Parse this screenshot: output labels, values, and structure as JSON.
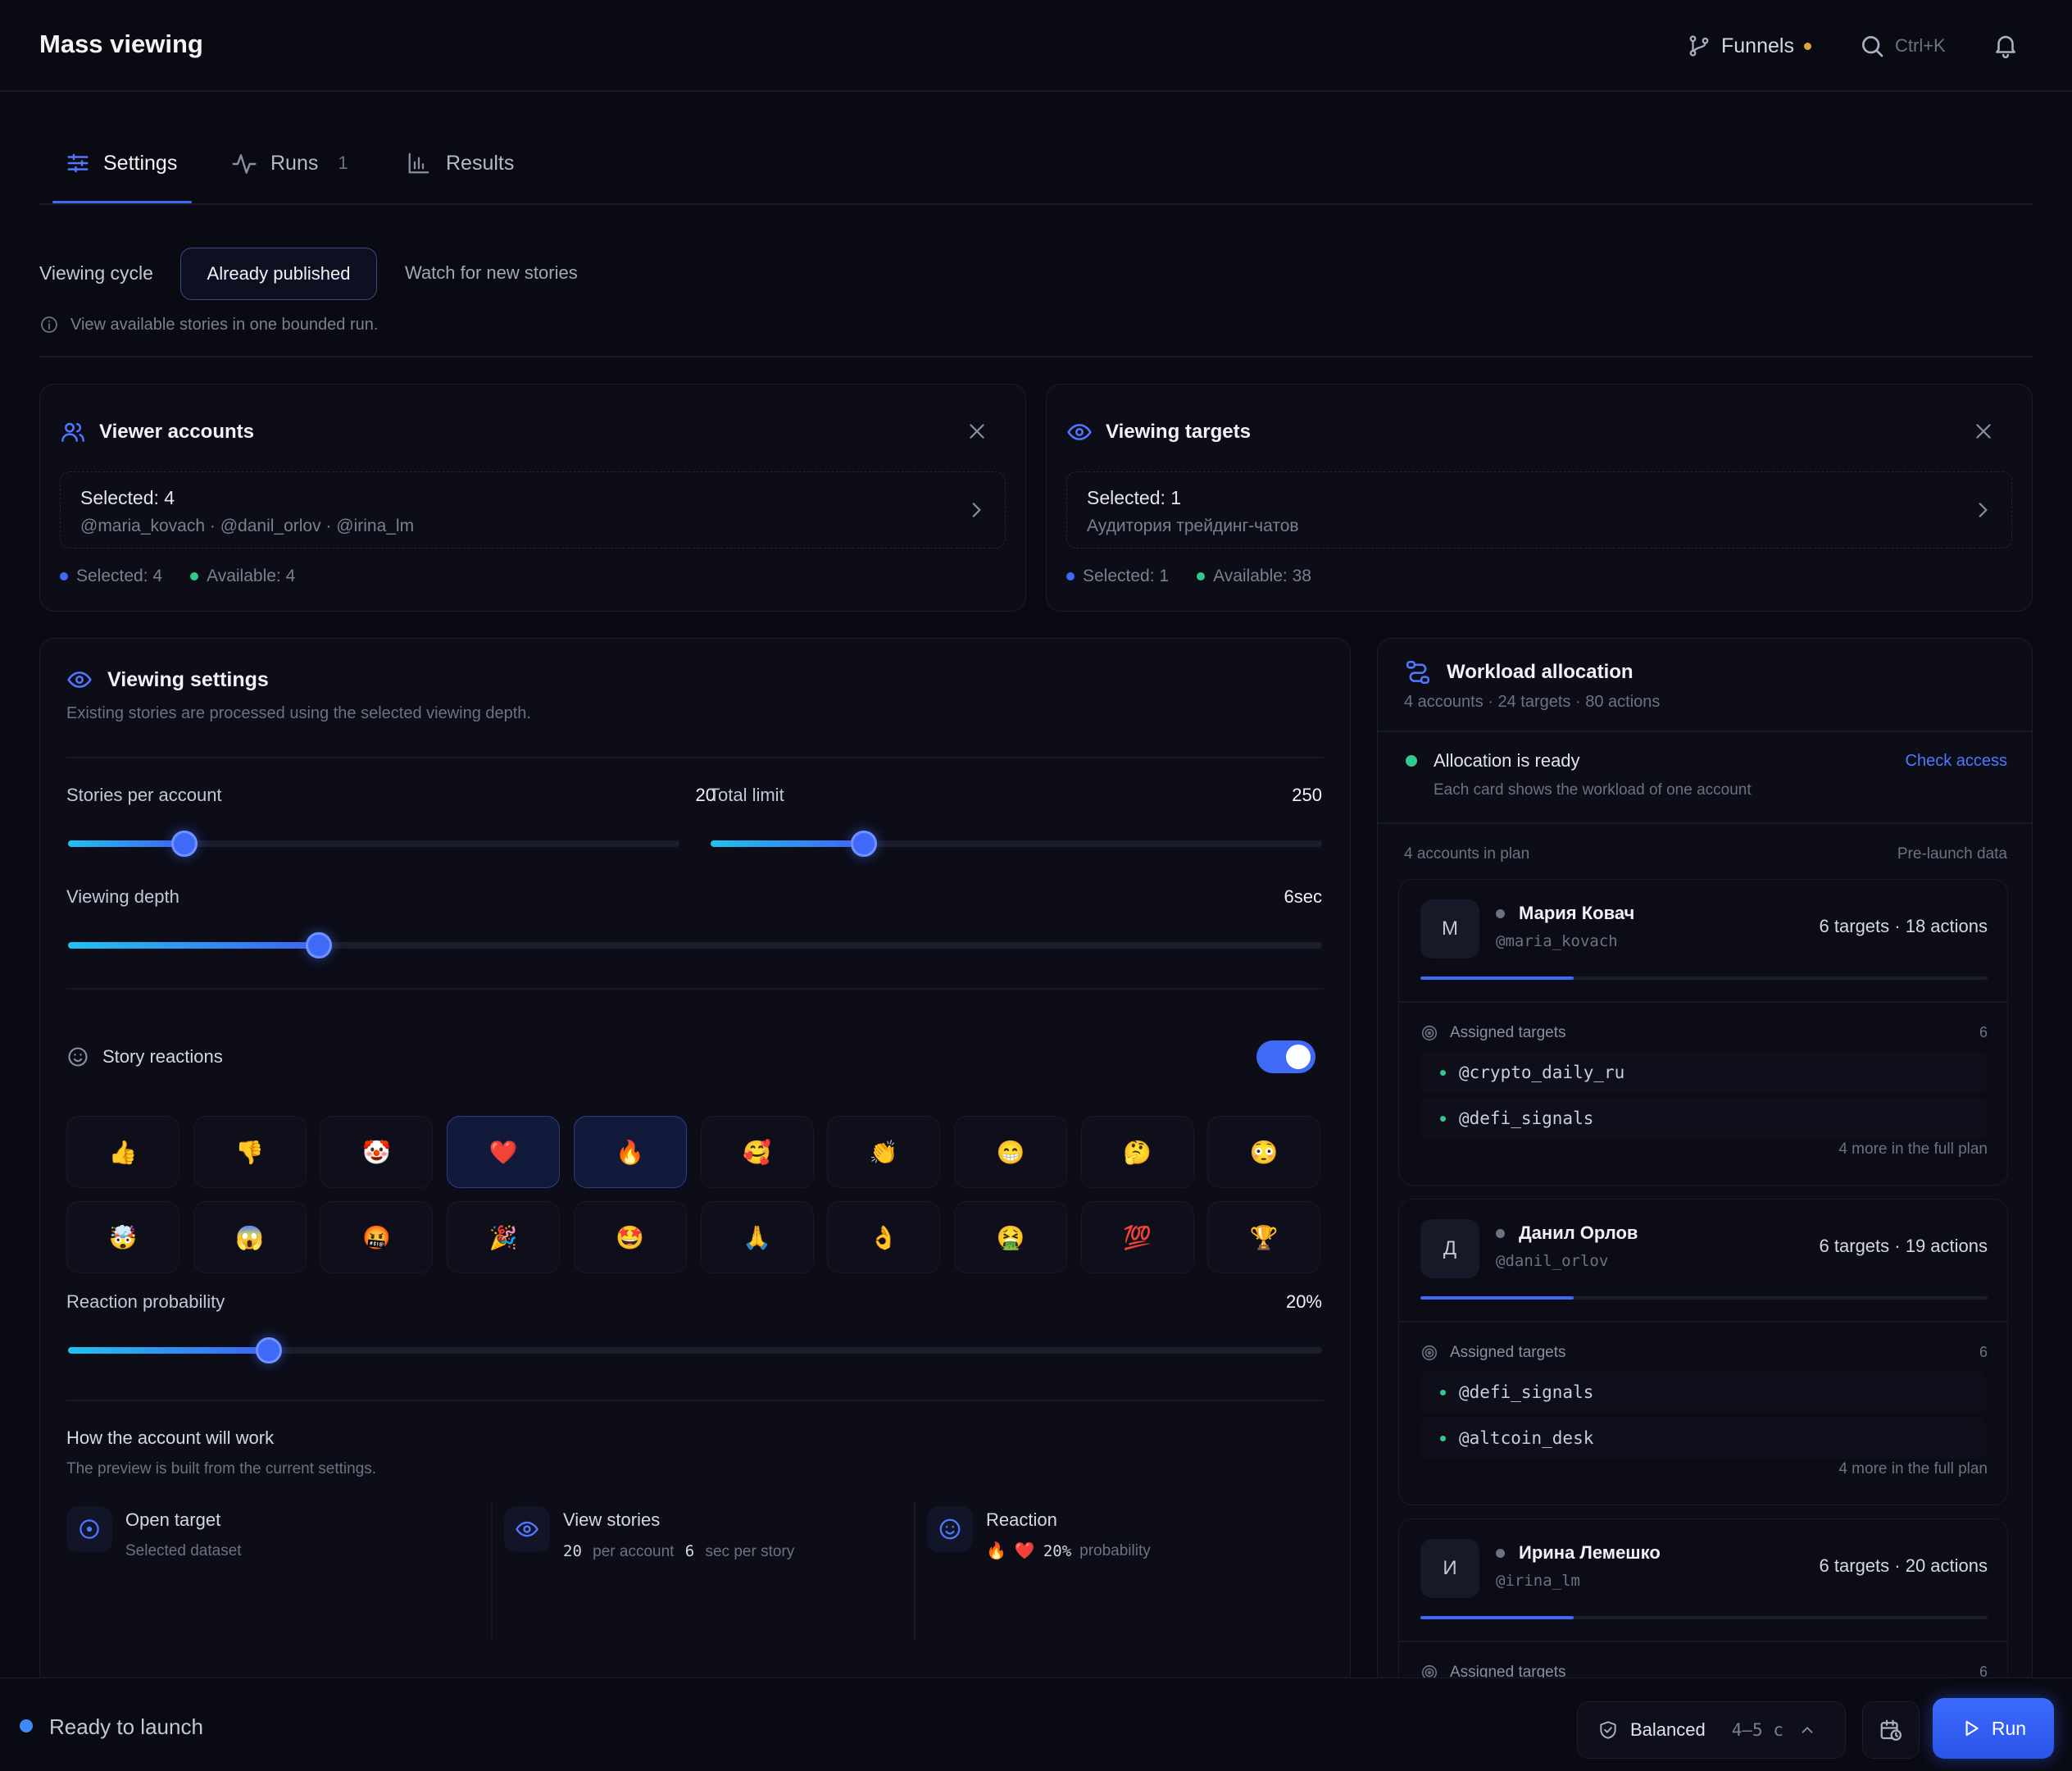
{
  "header": {
    "title": "Mass viewing",
    "funnels_label": "Funnels",
    "search_shortcut": "Ctrl+K"
  },
  "tabs": [
    {
      "label": "Settings",
      "badge": ""
    },
    {
      "label": "Runs",
      "badge": "1"
    },
    {
      "label": "Results",
      "badge": ""
    }
  ],
  "cycle": {
    "label": "Viewing cycle",
    "options": [
      "Already published",
      "Watch for new stories"
    ],
    "selected": "Already published",
    "hint": "View available stories in one bounded run."
  },
  "viewer_accounts": {
    "title": "Viewer accounts",
    "selected_line": "Selected: 4",
    "handles_line": "@maria_kovach · @danil_orlov · @irina_lm",
    "stat_selected": "Selected: 4",
    "stat_available": "Available: 4"
  },
  "viewing_targets": {
    "title": "Viewing targets",
    "selected_line": "Selected: 1",
    "dataset_line": "Аудитория трейдинг-чатов",
    "stat_selected": "Selected: 1",
    "stat_available": "Available: 38"
  },
  "viewing_settings": {
    "title": "Viewing settings",
    "subtitle": "Existing stories are processed using the selected viewing depth.",
    "stories_per_account": {
      "label": "Stories per account",
      "value": "20",
      "fraction": 0.19
    },
    "total_limit": {
      "label": "Total limit",
      "value": "250",
      "fraction": 0.25
    },
    "viewing_depth": {
      "label": "Viewing depth",
      "value": "6sec",
      "fraction": 0.2
    },
    "reactions": {
      "label": "Story reactions",
      "enabled": true,
      "emojis": [
        "👍",
        "👎",
        "🤡",
        "❤️",
        "🔥",
        "🥰",
        "👏",
        "😁",
        "🤔",
        "😳",
        "🤯",
        "😱",
        "🤬",
        "🎉",
        "🤩",
        "🙏",
        "👌",
        "🤮",
        "💯",
        "🏆"
      ],
      "selected": [
        "❤️",
        "🔥"
      ]
    },
    "reaction_probability": {
      "label": "Reaction probability",
      "value": "20%",
      "fraction": 0.16
    },
    "how": {
      "title": "How the account will work",
      "subtitle": "The preview is built from the current settings.",
      "steps": [
        {
          "title": "Open target",
          "desc": "Selected dataset"
        },
        {
          "title": "View stories",
          "n1": "20",
          "t1": "per account",
          "n2": "6",
          "t2": "sec per story"
        },
        {
          "title": "Reaction",
          "pct": "20%",
          "t": "probability"
        }
      ]
    }
  },
  "workload": {
    "title": "Workload allocation",
    "subtitle": "4 accounts · 24 targets · 80 actions",
    "status_title": "Allocation is ready",
    "status_desc": "Each card shows the workload of one account",
    "check_access": "Check access",
    "list_label": "4 accounts in plan",
    "list_right": "Pre-launch data",
    "accounts": [
      {
        "initial": "М",
        "name": "Мария Ковач",
        "handle": "@maria_kovach",
        "summary": "6 targets · 18 actions",
        "load": 0.27,
        "assigned_label": "Assigned targets",
        "assigned_count": "6",
        "targets": [
          "@crypto_daily_ru",
          "@defi_signals"
        ],
        "more": "4 more in the full plan"
      },
      {
        "initial": "Д",
        "name": "Данил Орлов",
        "handle": "@danil_orlov",
        "summary": "6 targets · 19 actions",
        "load": 0.27,
        "assigned_label": "Assigned targets",
        "assigned_count": "6",
        "targets": [
          "@defi_signals",
          "@altcoin_desk"
        ],
        "more": "4 more in the full plan"
      },
      {
        "initial": "И",
        "name": "Ирина Лемешко",
        "handle": "@irina_lm",
        "summary": "6 targets · 20 actions",
        "load": 0.27,
        "assigned_label": "Assigned targets",
        "assigned_count": "6"
      }
    ]
  },
  "footer": {
    "status": "Ready to launch",
    "mode": "Balanced",
    "mode_range": "4–5 с",
    "run": "Run"
  },
  "colors": {
    "accent": "#3e6af7",
    "success": "#2ecc8a",
    "warning": "#e0a43a",
    "background": "#090a12"
  }
}
